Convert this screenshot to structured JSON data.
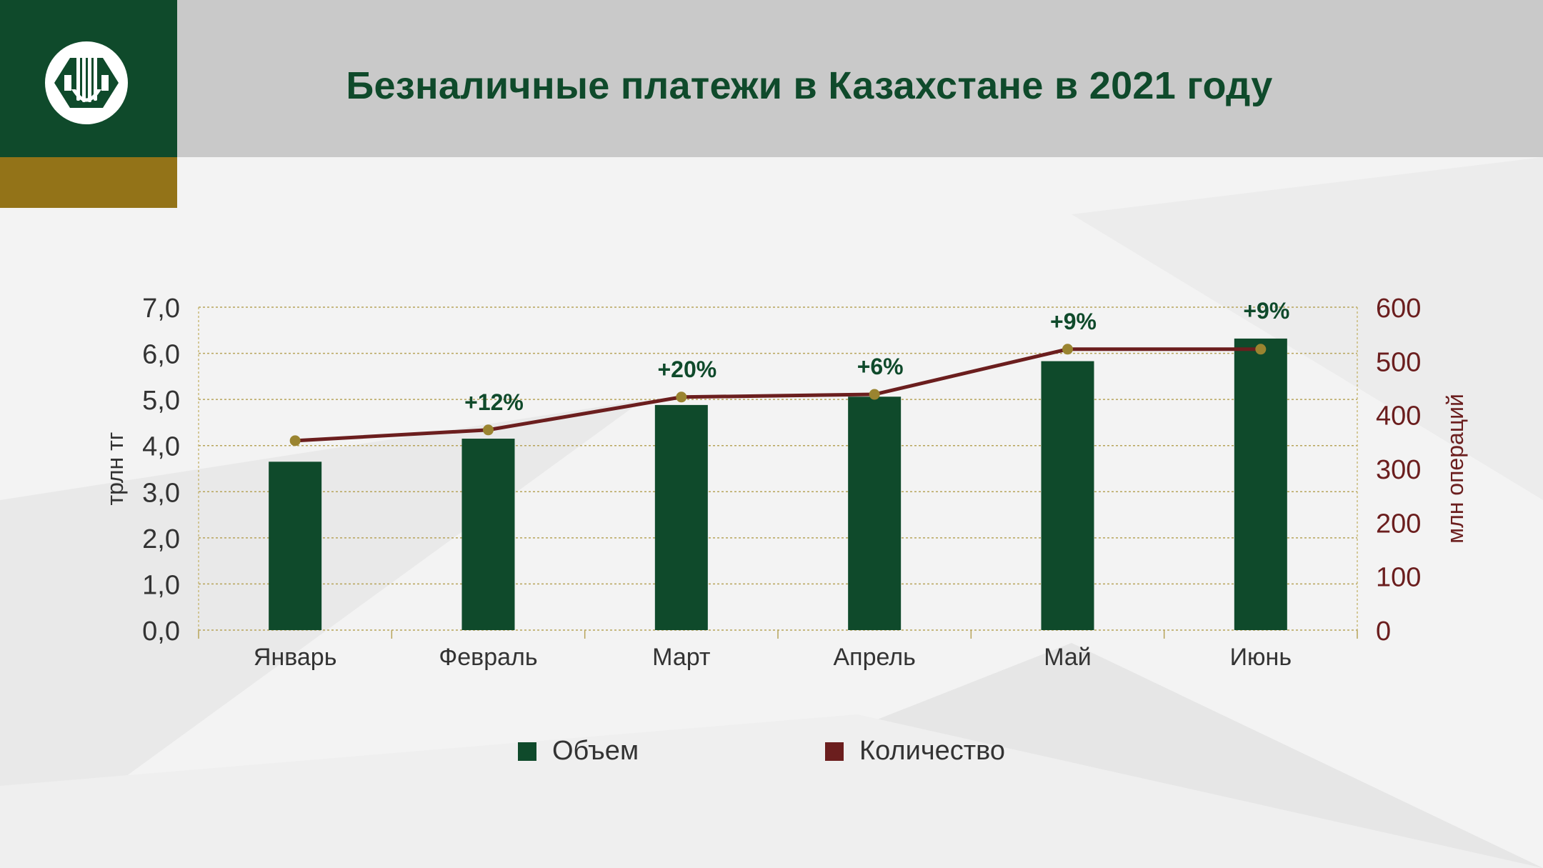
{
  "header": {
    "title": "Безналичные платежи в Казахстане в 2021 году"
  },
  "colors": {
    "header_bg": "#c9c9c9",
    "brand_green": "#0f4a2b",
    "brand_gold": "#937318",
    "bar": "#0f4a2b",
    "line": "#6b1e1e",
    "marker": "#9a8430",
    "right_axis_text": "#6b1e1e"
  },
  "logo": {
    "icon": "national-bank-emblem-icon"
  },
  "chart_data": {
    "type": "bar",
    "categories": [
      "Январь",
      "Февраль",
      "Март",
      "Апрель",
      "Май",
      "Июнь"
    ],
    "series": [
      {
        "name": "Объем",
        "type": "bar",
        "axis": "left",
        "values": [
          3.65,
          4.15,
          4.88,
          5.06,
          5.83,
          6.32
        ]
      },
      {
        "name": "Количество",
        "type": "line",
        "axis": "right",
        "values": [
          352,
          372,
          433,
          438,
          522,
          522
        ]
      }
    ],
    "growth_labels": [
      "",
      "+12%",
      "+20%",
      "+6%",
      "+9%",
      "+9%"
    ],
    "ylabel": "трлн тг",
    "y2label": "млн операций",
    "ylim": [
      0,
      7
    ],
    "y2lim": [
      0,
      600
    ],
    "y_ticks": [
      "0,0",
      "1,0",
      "2,0",
      "3,0",
      "4,0",
      "5,0",
      "6,0",
      "7,0"
    ],
    "y2_ticks": [
      "0",
      "100",
      "200",
      "300",
      "400",
      "500",
      "600"
    ],
    "grid": true,
    "legend_position": "bottom"
  }
}
